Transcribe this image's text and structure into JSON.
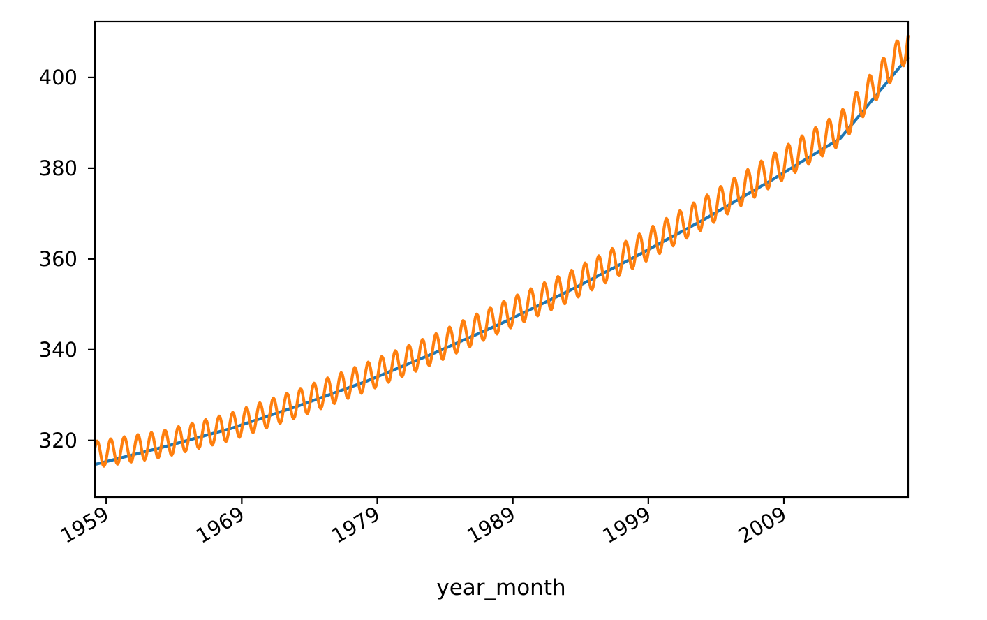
{
  "chart_data": {
    "type": "line",
    "title": "",
    "xlabel": "year_month",
    "ylabel": "",
    "x_range": [
      "1958-03",
      "2018-03"
    ],
    "ylim": [
      307.5,
      412.3
    ],
    "grid": false,
    "legend": "none",
    "x_ticks": [
      {
        "value": "1959-01",
        "label": "1959"
      },
      {
        "value": "1969-01",
        "label": "1969"
      },
      {
        "value": "1979-01",
        "label": "1979"
      },
      {
        "value": "1989-01",
        "label": "1989"
      },
      {
        "value": "1999-01",
        "label": "1999"
      },
      {
        "value": "2009-01",
        "label": "2009"
      }
    ],
    "y_ticks": [
      {
        "value": 320,
        "label": "320"
      },
      {
        "value": 340,
        "label": "340"
      },
      {
        "value": 360,
        "label": "360"
      },
      {
        "value": 380,
        "label": "380"
      },
      {
        "value": 400,
        "label": "400"
      }
    ],
    "series": [
      {
        "color": "#1f77b4",
        "style": "smooth trend",
        "x": [
          "1958-03",
          "1963-03",
          "1968-03",
          "1973-03",
          "1978-03",
          "1983-03",
          "1988-03",
          "1993-03",
          "1998-03",
          "2003-03",
          "2008-03",
          "2013-03",
          "2018-03"
        ],
        "values": [
          314.7,
          318.5,
          322.6,
          327.6,
          333.0,
          339.2,
          345.8,
          353.0,
          360.7,
          368.8,
          377.5,
          386.6,
          404.5
        ]
      },
      {
        "color": "#ff7f0e",
        "style": "monthly, seasonal cycle",
        "x": [
          "1958-03",
          "1963-03",
          "1968-03",
          "1973-03",
          "1978-03",
          "1983-03",
          "1988-03",
          "1993-03",
          "1998-03",
          "2003-03",
          "2008-03",
          "2013-03",
          "2018-03"
        ],
        "values": [
          316.9,
          319.2,
          323.0,
          328.2,
          333.9,
          340.1,
          347.2,
          353.9,
          361.8,
          370.3,
          379.6,
          388.7,
          407.5
        ],
        "seasonal_amplitude": 3.2
      }
    ]
  }
}
